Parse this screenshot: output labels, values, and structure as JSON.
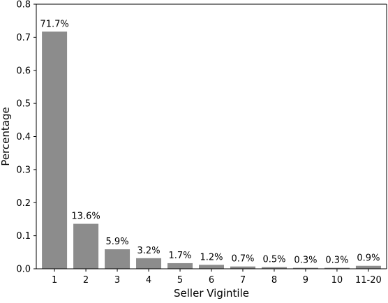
{
  "chart_data": {
    "type": "bar",
    "title": "",
    "xlabel": "Seller Vigintile",
    "ylabel": "Percentage",
    "categories": [
      "1",
      "2",
      "3",
      "4",
      "5",
      "6",
      "7",
      "8",
      "9",
      "10",
      "11-20"
    ],
    "values": [
      0.717,
      0.136,
      0.059,
      0.032,
      0.017,
      0.012,
      0.007,
      0.005,
      0.003,
      0.003,
      0.009
    ],
    "data_labels": [
      "71.7%",
      "13.6%",
      "5.9%",
      "3.2%",
      "1.7%",
      "1.2%",
      "0.7%",
      "0.5%",
      "0.3%",
      "0.3%",
      "0.9%"
    ],
    "ylim": [
      0,
      0.8
    ],
    "yticks": [
      0,
      0.1,
      0.2,
      0.3,
      0.4,
      0.5,
      0.6,
      0.7,
      0.8
    ],
    "ytick_labels": [
      "0.0",
      "0.1",
      "0.2",
      "0.3",
      "0.4",
      "0.5",
      "0.6",
      "0.7",
      "0.8"
    ],
    "grid": false,
    "legend": "none",
    "bar_color": "#8c8c8c",
    "axis_color": "#000000"
  }
}
